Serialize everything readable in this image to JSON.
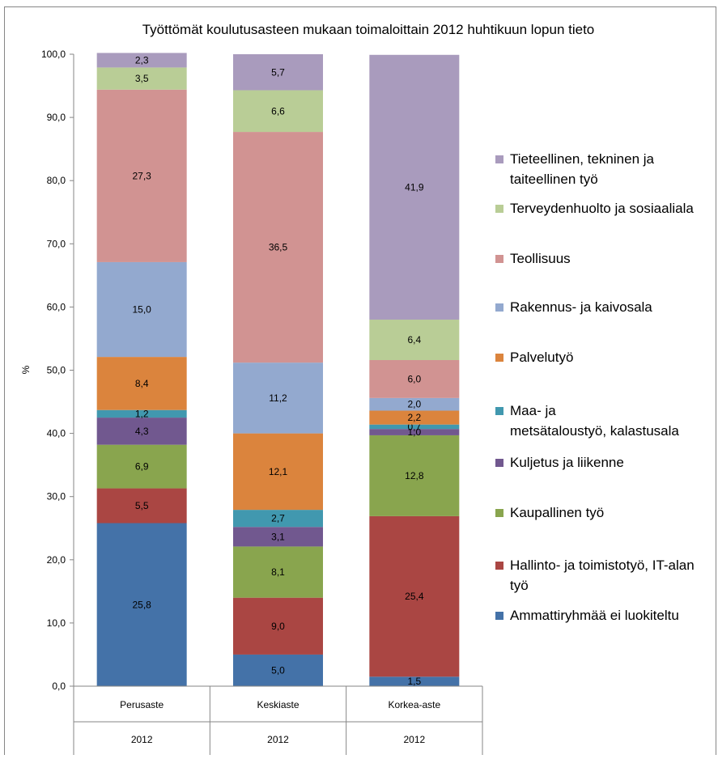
{
  "chart_data": {
    "type": "bar",
    "stacked": true,
    "title": "Työttömät koulutusasteen mukaan toimaloittain 2012 huhtikuun lopun tieto",
    "ylabel": "%",
    "xlabel": "",
    "ylim": [
      0,
      100
    ],
    "yticks": [
      "0,0",
      "10,0",
      "20,0",
      "30,0",
      "40,0",
      "50,0",
      "60,0",
      "70,0",
      "80,0",
      "90,0",
      "100,0"
    ],
    "ytick_values": [
      0,
      10,
      20,
      30,
      40,
      50,
      60,
      70,
      80,
      90,
      100
    ],
    "categories": [
      "Perusaste",
      "Keskiaste",
      "Korkea-aste"
    ],
    "category_years": [
      "2012",
      "2012",
      "2012"
    ],
    "legend_position": "right",
    "series": [
      {
        "name": "Ammattiryhmää ei luokiteltu",
        "color": "#4472a8",
        "values": [
          25.8,
          5.0,
          1.5
        ],
        "labels": [
          "25,8",
          "5,0",
          "1,5"
        ]
      },
      {
        "name": "Hallinto- ja toimistotyö, IT-alan työ",
        "color": "#aa4643",
        "values": [
          5.5,
          9.0,
          25.4
        ],
        "labels": [
          "5,5",
          "9,0",
          "25,4"
        ]
      },
      {
        "name": "Kaupallinen työ",
        "color": "#89a54e",
        "values": [
          6.9,
          8.1,
          12.8
        ],
        "labels": [
          "6,9",
          "8,1",
          "12,8"
        ]
      },
      {
        "name": "Kuljetus ja liikenne",
        "color": "#71588f",
        "values": [
          4.3,
          3.1,
          1.0
        ],
        "labels": [
          "4,3",
          "3,1",
          "1,0"
        ]
      },
      {
        "name": "Maa- ja metsätaloustyö, kalastusala",
        "color": "#4198af",
        "values": [
          1.2,
          2.7,
          0.7
        ],
        "labels": [
          "1,2",
          "2,7",
          "0,7"
        ]
      },
      {
        "name": "Palvelutyö",
        "color": "#db843d",
        "values": [
          8.4,
          12.1,
          2.2
        ],
        "labels": [
          "8,4",
          "12,1",
          "2,2"
        ]
      },
      {
        "name": "Rakennus- ja kaivosala",
        "color": "#93a9cf",
        "values": [
          15.0,
          11.2,
          2.0
        ],
        "labels": [
          "15,0",
          "11,2",
          "2,0"
        ]
      },
      {
        "name": "Teollisuus",
        "color": "#d19392",
        "values": [
          27.3,
          36.5,
          6.0
        ],
        "labels": [
          "27,3",
          "36,5",
          "6,0"
        ]
      },
      {
        "name": "Terveydenhuolto ja sosiaaliala",
        "color": "#b9cd96",
        "values": [
          3.5,
          6.6,
          6.4
        ],
        "labels": [
          "3,5",
          "6,6",
          "6,4"
        ]
      },
      {
        "name": "Tieteellinen, tekninen ja taiteellinen työ",
        "color": "#a99bbd",
        "values": [
          2.3,
          5.7,
          41.9
        ],
        "labels": [
          "2,3",
          "5,7",
          "41,9"
        ]
      }
    ]
  }
}
